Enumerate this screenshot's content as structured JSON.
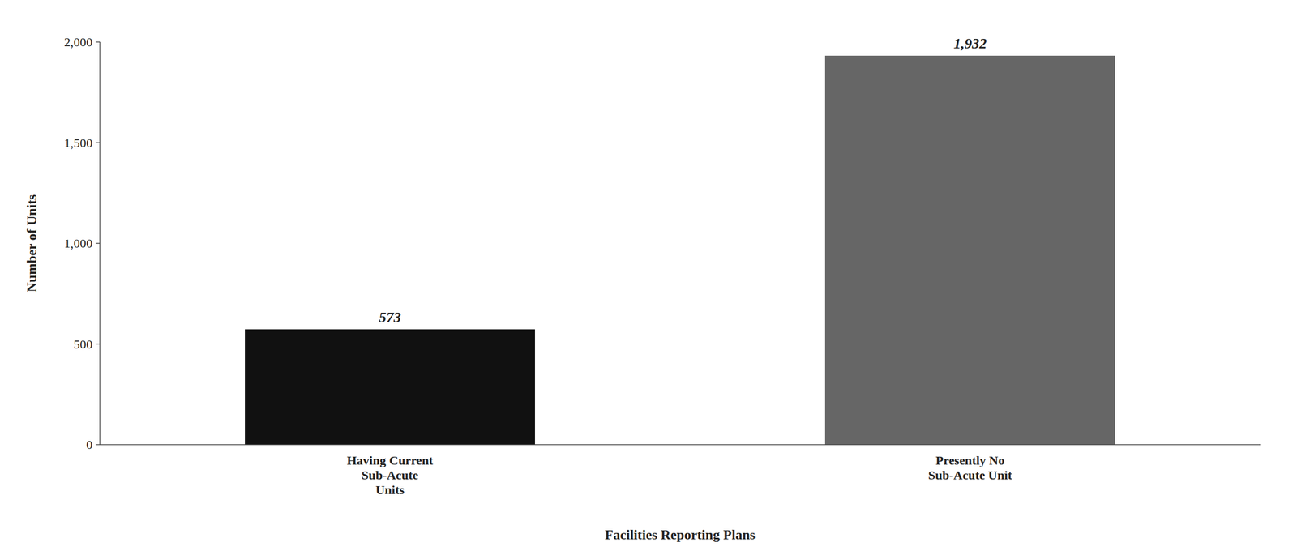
{
  "chart_data": {
    "type": "bar",
    "categories": [
      "Having Current\nSub-Acute\nUnits",
      "Presently No\nSub-Acute Unit"
    ],
    "values": [
      573,
      1932
    ],
    "value_labels": [
      "573",
      "1,932"
    ],
    "data_labels": true,
    "colors": [
      "#111111",
      "#666666"
    ],
    "xlabel": "Facilities Reporting Plans",
    "ylabel": "Number of Units",
    "ylim": [
      0,
      2000
    ],
    "yticks": [
      0,
      500,
      {
        "value": 1000,
        "label": "1,000"
      },
      {
        "value": 1500,
        "label": "1,500"
      },
      {
        "value": 2000,
        "label": "2,000"
      }
    ],
    "grid": false
  }
}
